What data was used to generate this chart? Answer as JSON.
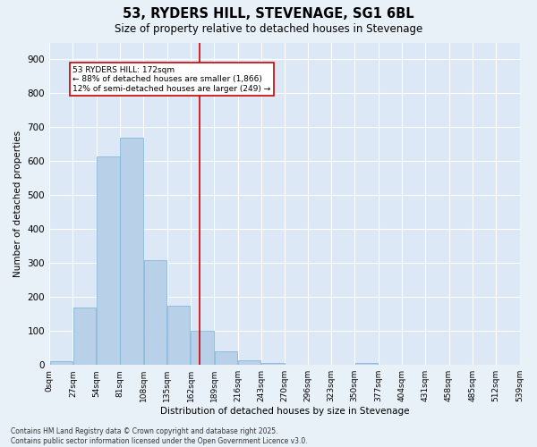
{
  "title": "53, RYDERS HILL, STEVENAGE, SG1 6BL",
  "subtitle": "Size of property relative to detached houses in Stevenage",
  "xlabel": "Distribution of detached houses by size in Stevenage",
  "ylabel": "Number of detached properties",
  "bin_labels": [
    "0sqm",
    "27sqm",
    "54sqm",
    "81sqm",
    "108sqm",
    "135sqm",
    "162sqm",
    "189sqm",
    "216sqm",
    "243sqm",
    "270sqm",
    "296sqm",
    "323sqm",
    "350sqm",
    "377sqm",
    "404sqm",
    "431sqm",
    "458sqm",
    "485sqm",
    "512sqm",
    "539sqm"
  ],
  "bin_edges": [
    0,
    27,
    54,
    81,
    108,
    135,
    162,
    189,
    216,
    243,
    270,
    296,
    323,
    350,
    377,
    404,
    431,
    458,
    485,
    512,
    539
  ],
  "bar_values": [
    10,
    170,
    615,
    670,
    310,
    175,
    100,
    40,
    15,
    5,
    0,
    0,
    0,
    5,
    0,
    0,
    0,
    0,
    0,
    0
  ],
  "bar_color": "#b8d0e8",
  "bar_edgecolor": "#7aafd4",
  "reference_line_x": 172,
  "reference_line_color": "#cc0000",
  "annotation_title": "53 RYDERS HILL: 172sqm",
  "annotation_line1": "← 88% of detached houses are smaller (1,866)",
  "annotation_line2": "12% of semi-detached houses are larger (249) →",
  "annotation_box_color": "#cc0000",
  "ylim": [
    0,
    950
  ],
  "yticks": [
    0,
    100,
    200,
    300,
    400,
    500,
    600,
    700,
    800,
    900
  ],
  "bg_color": "#dce8f5",
  "grid_color": "#ffffff",
  "fig_bg_color": "#e8f0f8",
  "footer_line1": "Contains HM Land Registry data © Crown copyright and database right 2025.",
  "footer_line2": "Contains public sector information licensed under the Open Government Licence v3.0."
}
